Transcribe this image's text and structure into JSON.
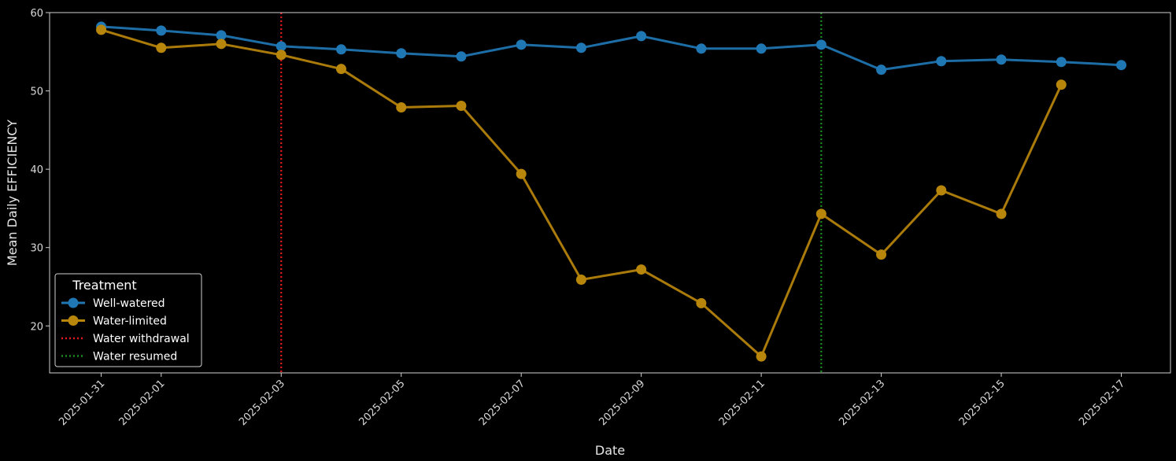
{
  "chart_data": {
    "type": "line",
    "title": "",
    "xlabel": "Date",
    "ylabel": "Mean Daily EFFICIENCY",
    "x_type": "date",
    "xlim": [
      "2025-01-30",
      "2025-02-17"
    ],
    "ylim": [
      14,
      60
    ],
    "yticks": [
      20,
      30,
      40,
      50,
      60
    ],
    "xtick_labels": [
      "2025-01-31",
      "2025-02-01",
      "2025-02-03",
      "2025-02-05",
      "2025-02-07",
      "2025-02-09",
      "2025-02-11",
      "2025-02-13",
      "2025-02-15",
      "2025-02-17"
    ],
    "grid": false,
    "legend": {
      "title": "Treatment",
      "placement": "lower-left"
    },
    "series": [
      {
        "name": "Well-watered",
        "color": "#1f77b4",
        "marker": "circle",
        "x": [
          "2025-01-31",
          "2025-02-01",
          "2025-02-02",
          "2025-02-03",
          "2025-02-04",
          "2025-02-05",
          "2025-02-06",
          "2025-02-07",
          "2025-02-08",
          "2025-02-09",
          "2025-02-10",
          "2025-02-11",
          "2025-02-12",
          "2025-02-13",
          "2025-02-14",
          "2025-02-15",
          "2025-02-16",
          "2025-02-17"
        ],
        "values": [
          58.2,
          57.7,
          57.1,
          55.7,
          55.3,
          54.8,
          54.4,
          55.9,
          55.5,
          57.0,
          55.4,
          55.4,
          55.9,
          52.7,
          53.8,
          54.0,
          53.7,
          53.3
        ]
      },
      {
        "name": "Water-limited",
        "color": "#b8860b",
        "marker": "circle",
        "x": [
          "2025-01-31",
          "2025-02-01",
          "2025-02-02",
          "2025-02-03",
          "2025-02-04",
          "2025-02-05",
          "2025-02-06",
          "2025-02-07",
          "2025-02-08",
          "2025-02-09",
          "2025-02-10",
          "2025-02-11",
          "2025-02-12",
          "2025-02-13",
          "2025-02-14",
          "2025-02-15",
          "2025-02-16"
        ],
        "values": [
          57.8,
          55.5,
          56.0,
          54.6,
          52.8,
          47.9,
          48.1,
          39.4,
          25.9,
          27.2,
          22.9,
          16.1,
          34.3,
          29.1,
          37.3,
          34.3,
          50.8
        ]
      }
    ],
    "vlines": [
      {
        "name": "Water withdrawal",
        "x": "2025-02-03",
        "color": "#e31a1c",
        "style": "dotted"
      },
      {
        "name": "Water resumed",
        "x": "2025-02-12",
        "color": "#1a8c1a",
        "style": "dotted"
      }
    ]
  }
}
